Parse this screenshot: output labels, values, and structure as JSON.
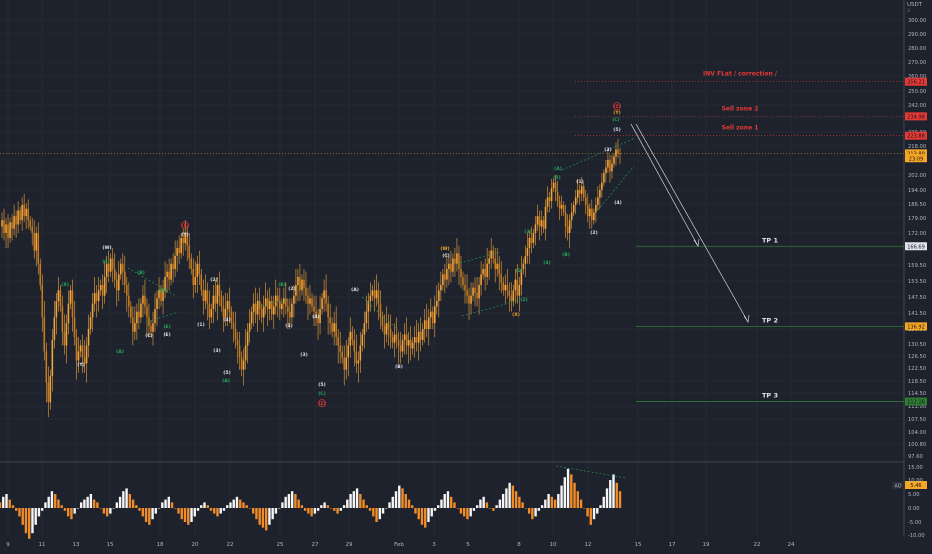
{
  "currency": "USDT",
  "right_label": "3",
  "osc_label": "AO",
  "colors": {
    "bg": "#1e222d",
    "candle": "#f2a33a",
    "candle_dark": "#c87a1c",
    "wave_white": "#e0e3eb",
    "wave_green": "#26a65b",
    "wave_red": "#e53935",
    "wave_orange": "#f5a623",
    "tp_line": "#2e7d32",
    "zone_red": "#e53935",
    "current": "#f5a623"
  },
  "chart_data": [
    {
      "type": "line",
      "title": "",
      "y_ticks": [
        300.0,
        290.0,
        280.0,
        270.0,
        260.0,
        250.0,
        242.0,
        234.0,
        226.0,
        218.0,
        210.0,
        202.0,
        194.0,
        186.5,
        179.0,
        172.0,
        166.0,
        159.5,
        153.5,
        147.5,
        141.5,
        136.0,
        130.5,
        126.5,
        122.5,
        118.5,
        114.5,
        111.0,
        107.5,
        104.0,
        100.8,
        97.6
      ],
      "y_tick_labels": [
        "300.00",
        "290.00",
        "280.00",
        "270.00",
        "260.00",
        "250.00",
        "242.00",
        "234.00",
        "226.00",
        "218.00",
        "210.00",
        "202.00",
        "194.00",
        "186.50",
        "179.00",
        "172.00",
        "166.00",
        "159.50",
        "153.50",
        "147.50",
        "141.50",
        "136.00",
        "130.50",
        "126.50",
        "122.50",
        "118.50",
        "114.50",
        "111.00",
        "107.50",
        "104.00",
        "100.80",
        "97.60"
      ],
      "x_tick_labels": [
        "9",
        "11",
        "13",
        "15",
        "18",
        "20",
        "22",
        "25",
        "27",
        "29",
        "Feb",
        "3",
        "5",
        "8",
        "10",
        "12",
        "15",
        "17",
        "19",
        "22",
        "24"
      ],
      "price_badges": [
        {
          "label": "256.21",
          "value": 256.2,
          "color": "#e53935"
        },
        {
          "label": "234.98",
          "value": 235.0,
          "color": "#e53935"
        },
        {
          "label": "223.88",
          "value": 223.9,
          "color": "#e53935"
        },
        {
          "label": "213.80",
          "value": 213.8,
          "color": "#f5a623"
        },
        {
          "label": "23:09",
          "value": 211.0,
          "color": "#f5a623"
        },
        {
          "label": "166.69",
          "value": 166.7,
          "color": "#e0e3eb"
        },
        {
          "label": "136.92",
          "value": 136.9,
          "color": "#f5a623"
        },
        {
          "label": "112.16",
          "value": 112.2,
          "color": "#2e7d32"
        }
      ],
      "series": [
        {
          "values": [
            175,
            178,
            172,
            176,
            170,
            177,
            174,
            180,
            176,
            183,
            178,
            186,
            180,
            184,
            178,
            175,
            172,
            165,
            172,
            160,
            152,
            140,
            128,
            118,
            112,
            120,
            132,
            140,
            146,
            150,
            144,
            135,
            130,
            138,
            145,
            150,
            140,
            133,
            125,
            128,
            130,
            126,
            124,
            130,
            136,
            140,
            145,
            149,
            146,
            150,
            152,
            148,
            155,
            160,
            157,
            162,
            158,
            154,
            150,
            156,
            160,
            157,
            152,
            148,
            144,
            140,
            135,
            138,
            142,
            140,
            145,
            148,
            144,
            140,
            137,
            135,
            138,
            143,
            147,
            150,
            146,
            150,
            155,
            157,
            154,
            160,
            158,
            163,
            166,
            164,
            170,
            168,
            172,
            167,
            162,
            158,
            152,
            155,
            160,
            156,
            150,
            146,
            150,
            145,
            140,
            143,
            148,
            145,
            152,
            148,
            144,
            140,
            143,
            146,
            142,
            138,
            136,
            132,
            130,
            126,
            122,
            125,
            130,
            135,
            138,
            142,
            145,
            141,
            146,
            143,
            140,
            144,
            147,
            143,
            146,
            141,
            144,
            148,
            146,
            143,
            145,
            147,
            144,
            142,
            140,
            145,
            148,
            152,
            155,
            150,
            154,
            151,
            148,
            145,
            147,
            144,
            142,
            140,
            138,
            143,
            147,
            150,
            145,
            140,
            138,
            135,
            138,
            133,
            130,
            128,
            126,
            122,
            126,
            130,
            135,
            132,
            128,
            124,
            125,
            130,
            134,
            138,
            142,
            146,
            148,
            150,
            147,
            150,
            145,
            140,
            137,
            134,
            138,
            136,
            133,
            131,
            134,
            132,
            130,
            128,
            132,
            134,
            130,
            132,
            129,
            131,
            133,
            131,
            135,
            132,
            136,
            139,
            136,
            140,
            142,
            138,
            144,
            146,
            150,
            152,
            156,
            154,
            158,
            160,
            157,
            162,
            160,
            164,
            158,
            155,
            152,
            150,
            148,
            145,
            148,
            151,
            149,
            147,
            152,
            156,
            158,
            155,
            160,
            162,
            165,
            162,
            158,
            160,
            156,
            153,
            150,
            152,
            150,
            148,
            146,
            150,
            154,
            148,
            152,
            158,
            160,
            163,
            166,
            170,
            168,
            172,
            176,
            180,
            175,
            178,
            174,
            185,
            190,
            188,
            195,
            198,
            193,
            188,
            184,
            186,
            182,
            175,
            172,
            178,
            182,
            186,
            190,
            194,
            192,
            196,
            190,
            186,
            180,
            184,
            178,
            182,
            186,
            190,
            194,
            198,
            203,
            206,
            210,
            204,
            208,
            212,
            216,
            214,
            213.8
          ]
        }
      ],
      "annotations": [
        {
          "text": "(W)",
          "color": "white",
          "x": 107,
          "y": 249
        },
        {
          "text": "(X)",
          "color": "green",
          "x": 65,
          "y": 286
        },
        {
          "text": "(Y)",
          "color": "white",
          "x": 81,
          "y": 366
        },
        {
          "text": "(C)",
          "color": "green",
          "x": 106,
          "y": 263
        },
        {
          "text": "(B)",
          "color": "green",
          "x": 141,
          "y": 274
        },
        {
          "text": "(D)",
          "color": "green",
          "x": 163,
          "y": 292
        },
        {
          "text": "(A)",
          "color": "green",
          "x": 120,
          "y": 353
        },
        {
          "text": "(C)",
          "color": "white",
          "x": 149,
          "y": 337
        },
        {
          "text": "(E)",
          "color": "white",
          "x": 167,
          "y": 336
        },
        {
          "text": "(E)",
          "color": "green",
          "x": 167,
          "y": 328
        },
        {
          "text": "(X)",
          "color": "red",
          "x": 185,
          "y": 227
        },
        {
          "text": "(Y)",
          "color": "white",
          "x": 185,
          "y": 236
        },
        {
          "text": "(2)",
          "color": "white",
          "x": 214,
          "y": 281
        },
        {
          "text": "(1)",
          "color": "white",
          "x": 201,
          "y": 326
        },
        {
          "text": "(4)",
          "color": "white",
          "x": 227,
          "y": 321
        },
        {
          "text": "(3)",
          "color": "white",
          "x": 217,
          "y": 352
        },
        {
          "text": "(5)",
          "color": "white",
          "x": 227,
          "y": 374
        },
        {
          "text": "(A)",
          "color": "green",
          "x": 226,
          "y": 382
        },
        {
          "text": "(B)",
          "color": "green",
          "x": 282,
          "y": 286
        },
        {
          "text": "(2)",
          "color": "white",
          "x": 292,
          "y": 290
        },
        {
          "text": "(1)",
          "color": "white",
          "x": 289,
          "y": 327
        },
        {
          "text": "(4)",
          "color": "white",
          "x": 316,
          "y": 318
        },
        {
          "text": "(3)",
          "color": "white",
          "x": 304,
          "y": 356
        },
        {
          "text": "(5)",
          "color": "white",
          "x": 322,
          "y": 386
        },
        {
          "text": "(C)",
          "color": "green",
          "x": 322,
          "y": 395
        },
        {
          "text": "(Z)",
          "color": "red",
          "x": 322,
          "y": 405
        },
        {
          "text": "(A)",
          "color": "white",
          "x": 355,
          "y": 291
        },
        {
          "text": "(B)",
          "color": "white",
          "x": 399,
          "y": 368
        },
        {
          "text": "(W)",
          "color": "orange",
          "x": 445,
          "y": 250
        },
        {
          "text": "(C)",
          "color": "white",
          "x": 446,
          "y": 257
        },
        {
          "text": "(X)",
          "color": "orange",
          "x": 516,
          "y": 316
        },
        {
          "text": "(2)",
          "color": "green",
          "x": 524,
          "y": 301
        },
        {
          "text": "(1)",
          "color": "green",
          "x": 519,
          "y": 272
        },
        {
          "text": "(3)",
          "color": "green",
          "x": 528,
          "y": 233
        },
        {
          "text": "(4)",
          "color": "green",
          "x": 547,
          "y": 264
        },
        {
          "text": "(5)",
          "color": "green",
          "x": 557,
          "y": 179
        },
        {
          "text": "(A)",
          "color": "green",
          "x": 558,
          "y": 170
        },
        {
          "text": "(B)",
          "color": "green",
          "x": 566,
          "y": 256
        },
        {
          "text": "(1)",
          "color": "white",
          "x": 580,
          "y": 183
        },
        {
          "text": "(2)",
          "color": "white",
          "x": 594,
          "y": 234
        },
        {
          "text": "(3)",
          "color": "white",
          "x": 608,
          "y": 151
        },
        {
          "text": "(4)",
          "color": "white",
          "x": 618,
          "y": 204
        },
        {
          "text": "(5)",
          "color": "white",
          "x": 617,
          "y": 131
        },
        {
          "text": "(C)",
          "color": "green",
          "x": 616,
          "y": 121
        },
        {
          "text": "(Y)",
          "color": "orange",
          "x": 617,
          "y": 114
        },
        {
          "text": "(Z)",
          "color": "red",
          "x": 617,
          "y": 108
        }
      ],
      "zones": [
        {
          "text": "INV FLat / correction /",
          "value": 256.2
        },
        {
          "text": "Sell zone 2",
          "value": 235.0
        },
        {
          "text": "Sell zone 1",
          "value": 223.9
        }
      ],
      "targets": [
        {
          "text": "TP 1",
          "value": 166.7
        },
        {
          "text": "TP 2",
          "value": 136.9
        },
        {
          "text": "TP 3",
          "value": 112.2
        }
      ]
    },
    {
      "type": "bar",
      "title": "AO",
      "y_ticks": [
        15.0,
        10.0,
        5.0,
        0.0,
        -5.0,
        -10.0
      ],
      "y_tick_labels": [
        "15.00",
        "10.00",
        "5.00",
        "0.00",
        "-5.00",
        "-10.00"
      ],
      "current_value": "5.46",
      "values": [
        2,
        4,
        5,
        3,
        1,
        -1,
        -3,
        -6,
        -9,
        -11,
        -9,
        -6,
        -3,
        -1,
        2,
        4,
        6,
        5,
        3,
        1,
        -1,
        -3,
        -4,
        -2,
        0,
        2,
        3,
        4,
        5,
        3,
        2,
        0,
        -2,
        -3,
        -2,
        0,
        2,
        4,
        6,
        7,
        5,
        3,
        1,
        -1,
        -3,
        -5,
        -6,
        -4,
        -2,
        0,
        2,
        3,
        4,
        2,
        0,
        -2,
        -4,
        -5,
        -6,
        -5,
        -3,
        -1,
        1,
        2,
        1,
        -1,
        -2,
        -3,
        -2,
        -1,
        1,
        2,
        3,
        4,
        3,
        2,
        1,
        0,
        -2,
        -4,
        -6,
        -7,
        -8,
        -6,
        -4,
        -2,
        0,
        2,
        4,
        5,
        6,
        5,
        3,
        1,
        -1,
        -2,
        -3,
        -2,
        -1,
        1,
        2,
        1,
        0,
        -1,
        -2,
        -1,
        1,
        3,
        5,
        6,
        7,
        5,
        3,
        1,
        -1,
        -3,
        -5,
        -4,
        -2,
        0,
        2,
        4,
        6,
        8,
        7,
        5,
        3,
        1,
        -2,
        -4,
        -6,
        -7,
        -5,
        -3,
        -1,
        1,
        3,
        5,
        6,
        4,
        2,
        0,
        -2,
        -3,
        -4,
        -3,
        -1,
        1,
        3,
        4,
        2,
        0,
        -1,
        1,
        3,
        5,
        7,
        9,
        8,
        6,
        4,
        2,
        0,
        -2,
        -4,
        -3,
        -1,
        1,
        3,
        5,
        4,
        3,
        5,
        8,
        11,
        14,
        12,
        9,
        6,
        3,
        0,
        -3,
        -6,
        -4,
        -2,
        1,
        4,
        7,
        10,
        12,
        9,
        6
      ]
    }
  ]
}
